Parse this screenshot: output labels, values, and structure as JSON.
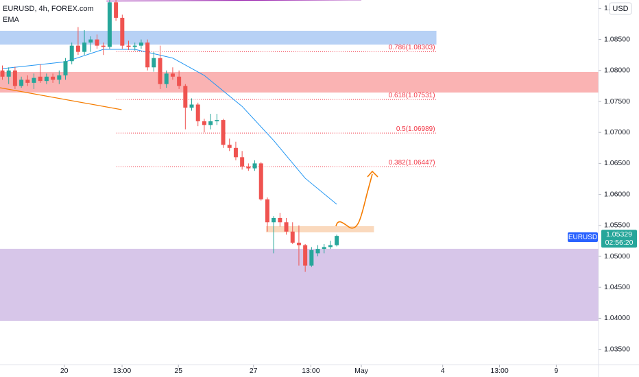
{
  "chart_data": {
    "type": "candlestick",
    "title": "EURUSD, 4h, FOREX.com",
    "indicator": "EMA",
    "currency": "USD",
    "symbol": "EURUSD",
    "last_price": 1.05329,
    "countdown": "02:56:20",
    "up_color": "#26a69a",
    "down_color": "#ef5350",
    "x": [
      0,
      1,
      2,
      3,
      4,
      5,
      6,
      7,
      8,
      9,
      10,
      11,
      12,
      13,
      14,
      15,
      16,
      17,
      18,
      19,
      20,
      21,
      22,
      23,
      24,
      25,
      26,
      27,
      28,
      29,
      30,
      31,
      32,
      33,
      34,
      35,
      36,
      37,
      38,
      39,
      40,
      41,
      42,
      43,
      44,
      45,
      46,
      47,
      48,
      49,
      50,
      51,
      52,
      53
    ],
    "open": [
      1.08,
      1.079,
      1.08,
      1.0775,
      1.0785,
      1.078,
      1.079,
      1.0783,
      1.079,
      1.0785,
      1.0792,
      1.0815,
      1.084,
      1.083,
      1.0845,
      1.085,
      1.084,
      1.0838,
      1.091,
      1.0885,
      1.084,
      1.0838,
      1.084,
      1.0845,
      1.0805,
      1.082,
      1.0778,
      1.0795,
      1.079,
      1.0775,
      1.074,
      1.0745,
      1.0718,
      1.0712,
      1.0718,
      1.072,
      1.068,
      1.0675,
      1.066,
      1.0645,
      1.0642,
      1.065,
      1.0592,
      1.0555,
      1.0562,
      1.0555,
      1.054,
      1.0522,
      1.0518,
      1.0485,
      1.0505,
      1.0512,
      1.0515,
      1.0518
    ],
    "high": [
      1.0808,
      1.0805,
      1.0806,
      1.079,
      1.0792,
      1.0795,
      1.081,
      1.0795,
      1.0795,
      1.08,
      1.082,
      1.0845,
      1.087,
      1.0865,
      1.0855,
      1.0858,
      1.0845,
      1.092,
      1.0925,
      1.089,
      1.0848,
      1.0845,
      1.085,
      1.085,
      1.083,
      1.084,
      1.08,
      1.0805,
      1.08,
      1.0778,
      1.0755,
      1.0748,
      1.0722,
      1.073,
      1.073,
      1.0722,
      1.069,
      1.0685,
      1.067,
      1.065,
      1.0655,
      1.0652,
      1.0595,
      1.0565,
      1.057,
      1.0562,
      1.0555,
      1.055,
      1.052,
      1.0515,
      1.0518,
      1.052,
      1.0525,
      1.0535
    ],
    "low": [
      1.0785,
      1.0778,
      1.077,
      1.0772,
      1.0775,
      1.077,
      1.078,
      1.0778,
      1.078,
      1.0778,
      1.0785,
      1.081,
      1.0825,
      1.0825,
      1.083,
      1.0835,
      1.0825,
      1.0835,
      1.088,
      1.0835,
      1.0833,
      1.0832,
      1.0835,
      1.08,
      1.0798,
      1.077,
      1.0772,
      1.0785,
      1.077,
      1.0705,
      1.0735,
      1.071,
      1.07,
      1.0705,
      1.0712,
      1.0675,
      1.067,
      1.0655,
      1.064,
      1.0638,
      1.0638,
      1.059,
      1.054,
      1.0505,
      1.0548,
      1.0535,
      1.052,
      1.0485,
      1.0475,
      1.0483,
      1.05,
      1.0505,
      1.0512,
      1.0516
    ],
    "close": [
      1.079,
      1.08,
      1.0775,
      1.0785,
      1.078,
      1.0788,
      1.0783,
      1.079,
      1.0785,
      1.0792,
      1.0815,
      1.084,
      1.083,
      1.0845,
      1.085,
      1.084,
      1.0838,
      1.091,
      1.0885,
      1.084,
      1.0838,
      1.084,
      1.0845,
      1.0805,
      1.082,
      1.0778,
      1.0795,
      1.079,
      1.0775,
      1.074,
      1.0745,
      1.0718,
      1.0712,
      1.0718,
      1.072,
      1.068,
      1.0675,
      1.066,
      1.0645,
      1.0642,
      1.065,
      1.0592,
      1.0555,
      1.0562,
      1.0555,
      1.054,
      1.0522,
      1.0518,
      1.0485,
      1.051,
      1.0512,
      1.0515,
      1.0518,
      1.0533
    ],
    "ema": {
      "name": "EMA",
      "color": "#2196f3",
      "x": [
        0,
        10,
        16,
        21,
        27,
        32,
        38,
        43,
        48,
        53
      ],
      "values": [
        1.0803,
        1.0814,
        1.0834,
        1.0834,
        1.082,
        1.0792,
        1.0742,
        1.0687,
        1.0626,
        1.0584
      ]
    },
    "zones": [
      {
        "color": "#90b8f0",
        "ylim": [
          1.08418,
          1.0864
        ],
        "xlim": [
          -0.38,
          68.8
        ]
      },
      {
        "color": "#f88a8a",
        "ylim": [
          1.07644,
          1.07976
        ],
        "xlim": [
          -0.38,
          94.5
        ]
      },
      {
        "color": "#c2a7dd",
        "ylim": [
          1.0396,
          1.05122
        ],
        "xlim": [
          -0.38,
          94.5
        ]
      },
      {
        "color": "#f7c59a",
        "ylim": [
          1.05387,
          1.05487
        ],
        "xlim": [
          41.8,
          58.9
        ]
      }
    ],
    "trend_lines": [
      {
        "color": "#9c27b0",
        "x": [
          16.5,
          56.9
        ],
        "values": [
          1.0912,
          1.0914
        ]
      },
      {
        "color": "#f57c00",
        "x": [
          -0.38,
          18.9
        ],
        "values": [
          1.07721,
          1.07367
        ]
      }
    ],
    "fib_color": "#f23645",
    "fib_xlim": [
      18.1,
      68.8
    ],
    "fib_levels": [
      {
        "value": 1.08303,
        "label": "0.786(1.08303)"
      },
      {
        "value": 1.07531,
        "label": "0.618(1.07531)"
      },
      {
        "value": 1.06989,
        "label": "0.5(1.06989)"
      },
      {
        "value": 1.06447,
        "label": "0.382(1.06447)"
      }
    ],
    "xlim": [
      -0.38,
      94.5
    ],
    "ylim": [
      1.03252,
      1.09137
    ],
    "xticks": [
      {
        "value": 9.8,
        "label": "20"
      },
      {
        "value": 18.97,
        "label": "13:00"
      },
      {
        "value": 27.9,
        "label": "25"
      },
      {
        "value": 39.8,
        "label": "27"
      },
      {
        "value": 48.9,
        "label": "13:00"
      },
      {
        "value": 56.9,
        "label": "May"
      },
      {
        "value": 69.8,
        "label": "4"
      },
      {
        "value": 78.8,
        "label": "13:00"
      },
      {
        "value": 87.8,
        "label": "9"
      }
    ],
    "yticks": [
      {
        "value": 1.09,
        "label": "1."
      },
      {
        "value": 1.085,
        "label": "1.08500"
      },
      {
        "value": 1.08,
        "label": "1.08000"
      },
      {
        "value": 1.075,
        "label": "1.07500"
      },
      {
        "value": 1.07,
        "label": "1.07000"
      },
      {
        "value": 1.065,
        "label": "1.06500"
      },
      {
        "value": 1.06,
        "label": "1.06000"
      },
      {
        "value": 1.055,
        "label": "1.05500"
      },
      {
        "value": 1.05,
        "label": "1.05000"
      },
      {
        "value": 1.045,
        "label": "1.04500"
      },
      {
        "value": 1.04,
        "label": "1.04000"
      },
      {
        "value": 1.035,
        "label": "1.03500"
      }
    ]
  }
}
